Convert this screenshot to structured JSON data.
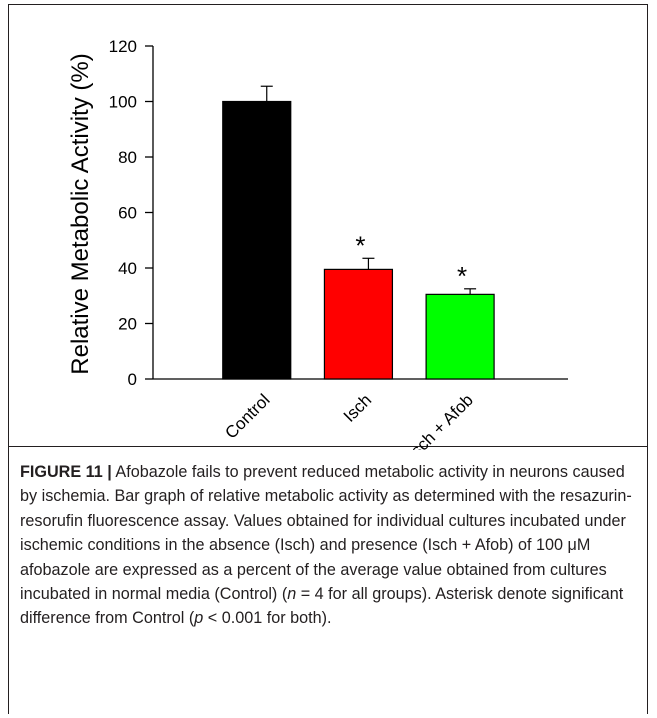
{
  "chart_data": {
    "type": "bar",
    "categories": [
      "Control",
      "Isch",
      "Isch + Afob"
    ],
    "values": [
      100,
      39.5,
      30.5
    ],
    "errors": [
      5.5,
      4,
      2
    ],
    "significance": [
      "",
      "*",
      "*"
    ],
    "colors": [
      "#000000",
      "#ff0000",
      "#00ff00"
    ],
    "ylabel": "Relative Metabolic Activity (%)",
    "xlabel": "",
    "ylim": [
      0,
      120
    ],
    "yticks": [
      0,
      20,
      40,
      60,
      80,
      100,
      120
    ],
    "grid": false,
    "legend": "none"
  },
  "caption": {
    "label": "FIGURE 11 |",
    "p1": " Afobazole fails to prevent reduced metabolic activity in neurons caused by ischemia. Bar graph of relative metabolic activity as determined with the resazurin-resorufin fluorescence assay. Values obtained for individual cultures incubated under ischemic conditions in the absence (Isch) and presence (Isch + Afob) of 100 ",
    "mu": "μ",
    "p2": "M afobazole are expressed as a percent of the average value obtained from cultures incubated in normal media (Control) (",
    "n": "n",
    "p3": " = 4 for all groups). Asterisk denote significant difference from Control (",
    "p": "p",
    "p4": " < 0.001 for both)."
  }
}
